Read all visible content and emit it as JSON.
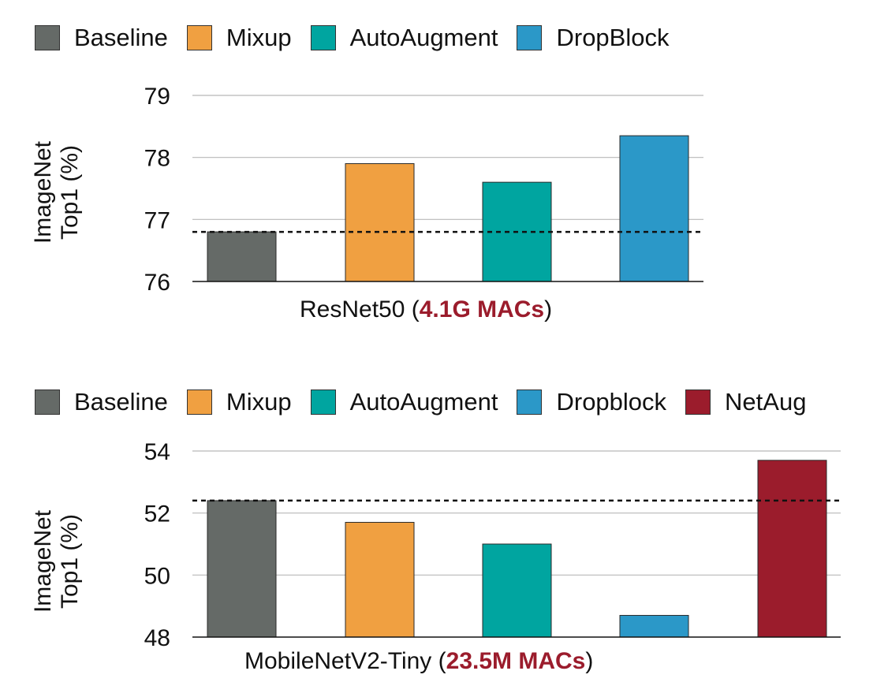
{
  "chart_data": [
    {
      "type": "bar",
      "categories": [
        "Baseline",
        "Mixup",
        "AutoAugment",
        "DropBlock"
      ],
      "values": [
        76.8,
        77.9,
        77.6,
        78.35
      ],
      "colors": [
        "#656a67",
        "#f0a041",
        "#00a5a0",
        "#2b98c8"
      ],
      "legend": [
        "Baseline",
        "Mixup",
        "AutoAugment",
        "DropBlock"
      ],
      "title_prefix": "ResNet50 (",
      "title_highlight": "4.1G MACs",
      "title_suffix": ")",
      "ylabel_line1": "ImageNet",
      "ylabel_line2": "Top1 (%)",
      "ylim": [
        76,
        79
      ],
      "yticks": [
        "76",
        "77",
        "78",
        "79"
      ],
      "baseline_ref": 76.8,
      "grid": true,
      "legend_position": "top"
    },
    {
      "type": "bar",
      "categories": [
        "Baseline",
        "Mixup",
        "AutoAugment",
        "Dropblock",
        "NetAug"
      ],
      "values": [
        52.4,
        51.7,
        51.0,
        48.7,
        53.7
      ],
      "colors": [
        "#656a67",
        "#f0a041",
        "#00a5a0",
        "#2b98c8",
        "#9b1c2c"
      ],
      "legend": [
        "Baseline",
        "Mixup",
        "AutoAugment",
        "Dropblock",
        "NetAug"
      ],
      "title_prefix": "MobileNetV2-Tiny (",
      "title_highlight": "23.5M MACs",
      "title_suffix": ")",
      "ylabel_line1": "ImageNet",
      "ylabel_line2": "Top1 (%)",
      "ylim": [
        48,
        54
      ],
      "yticks": [
        "48",
        "50",
        "52",
        "54"
      ],
      "baseline_ref": 52.4,
      "grid": true,
      "legend_position": "top"
    }
  ]
}
